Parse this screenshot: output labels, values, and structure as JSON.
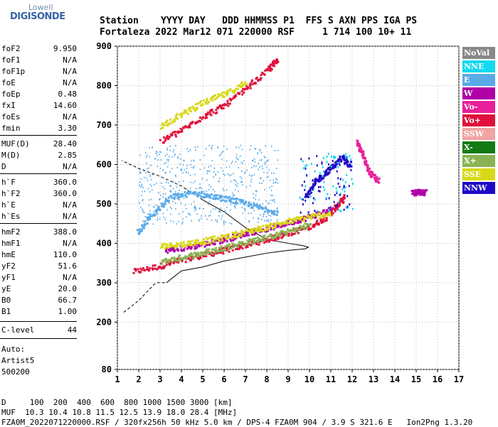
{
  "logo": {
    "top": "Lowell",
    "main": "DIGISONDE"
  },
  "header": {
    "line1": "Station    YYYY DAY   DDD HHMMSS P1  FFS S AXN PPS IGA PS",
    "line2": "Fortaleza 2022 Mar12 071 220000 RSF     1 714 100 10+ 11"
  },
  "params": [
    {
      "k": "foF2",
      "v": "9.950"
    },
    {
      "k": "foF1",
      "v": "N/A"
    },
    {
      "k": "foF1p",
      "v": "N/A"
    },
    {
      "k": "foE",
      "v": "N/A"
    },
    {
      "k": "foEp",
      "v": "0.48"
    },
    {
      "k": "fxI",
      "v": "14.60"
    },
    {
      "k": "foEs",
      "v": "N/A"
    },
    {
      "k": "fmin",
      "v": "3.30"
    },
    {
      "k": "MUF(D)",
      "v": "28.40"
    },
    {
      "k": "M(D)",
      "v": "2.85"
    },
    {
      "k": "D",
      "v": "N/A"
    },
    {
      "k": "h`F",
      "v": "360.0"
    },
    {
      "k": "h`F2",
      "v": "360.0"
    },
    {
      "k": "h`E",
      "v": "N/A"
    },
    {
      "k": "h`Es",
      "v": "N/A"
    },
    {
      "k": "hmF2",
      "v": "388.0"
    },
    {
      "k": "hmF1",
      "v": "N/A"
    },
    {
      "k": "hmE",
      "v": "110.0"
    },
    {
      "k": "yF2",
      "v": "51.6"
    },
    {
      "k": "yF1",
      "v": "N/A"
    },
    {
      "k": "yE",
      "v": "20.0"
    },
    {
      "k": "B0",
      "v": "66.7"
    },
    {
      "k": "B1",
      "v": "1.00"
    },
    {
      "k": "C-level",
      "v": "44"
    }
  ],
  "auto": {
    "line1": "Auto:",
    "line2": "Artist5",
    "line3": "500200"
  },
  "legend": [
    {
      "label": "NoVal",
      "color": "#888888"
    },
    {
      "label": "NNE",
      "color": "#14d8f0"
    },
    {
      "label": "E",
      "color": "#5aaae8"
    },
    {
      "label": "W",
      "color": "#b000a8"
    },
    {
      "label": "Vo-",
      "color": "#e8209a"
    },
    {
      "label": "Vo+",
      "color": "#e0103c"
    },
    {
      "label": "SSW",
      "color": "#f0a4a4"
    },
    {
      "label": "X-",
      "color": "#127a12"
    },
    {
      "label": "X+",
      "color": "#8ab452"
    },
    {
      "label": "SSE",
      "color": "#d8d818"
    },
    {
      "label": "NNW",
      "color": "#2008c8"
    }
  ],
  "footer": {
    "d_row": "D     100  200  400  600  800 1000 1500 3000 [km]",
    "muf_row": "MUF  10.3 10.4 10.8 11.5 12.5 13.9 18.0 28.4 [MHz]",
    "file_row": "FZA0M_2022071220000.RSF / 320fx256h 50 kHz 5.0 km / DPS-4 FZA0M 904 / 3.9 S 321.6 E   Ion2Png 1.3.20"
  },
  "chart_data": {
    "type": "scatter",
    "xlim": [
      1,
      17
    ],
    "ylim": [
      80,
      900
    ],
    "x_ticks": [
      "1",
      "2",
      "3",
      "4",
      "5",
      "6",
      "7",
      "8",
      "9",
      "10",
      "11",
      "12",
      "13",
      "14",
      "15",
      "16",
      "17"
    ],
    "y_ticks": [
      "80",
      "200",
      "300",
      "400",
      "500",
      "600",
      "700",
      "800",
      "900"
    ],
    "grid": true,
    "profile_solid": [
      [
        3.3,
        300
      ],
      [
        4.0,
        330
      ],
      [
        5.0,
        340
      ],
      [
        6.0,
        355
      ],
      [
        7.0,
        365
      ],
      [
        8.0,
        375
      ],
      [
        9.0,
        382
      ],
      [
        9.8,
        386
      ],
      [
        9.95,
        390
      ],
      [
        9.7,
        394
      ],
      [
        9.0,
        400
      ],
      [
        8.0,
        410
      ],
      [
        7.0,
        440
      ],
      [
        6.0,
        480
      ],
      [
        5.0,
        510
      ]
    ],
    "profile_dashed": [
      [
        1.3,
        225
      ],
      [
        2.0,
        255
      ],
      [
        2.8,
        300
      ],
      [
        3.3,
        300
      ]
    ],
    "profile_dashed_top": [
      [
        5.0,
        510
      ],
      [
        4.0,
        545
      ],
      [
        3.0,
        570
      ],
      [
        2.0,
        590
      ],
      [
        1.2,
        610
      ]
    ],
    "traces": [
      {
        "color": "#e0103c",
        "pts": [
          [
            1.7,
            330
          ],
          [
            3,
            345
          ],
          [
            4,
            360
          ],
          [
            5,
            372
          ],
          [
            6,
            385
          ],
          [
            7,
            398
          ],
          [
            8,
            412
          ],
          [
            9,
            428
          ],
          [
            10,
            445
          ],
          [
            10.8,
            470
          ],
          [
            11.3,
            500
          ],
          [
            11.6,
            520
          ]
        ]
      },
      {
        "color": "#8ab452",
        "pts": [
          [
            3,
            355
          ],
          [
            4,
            367
          ],
          [
            5,
            378
          ],
          [
            6,
            392
          ],
          [
            7,
            405
          ],
          [
            8,
            418
          ],
          [
            9,
            432
          ],
          [
            10,
            450
          ]
        ]
      },
      {
        "color": "#b000a8",
        "pts": [
          [
            3.2,
            385
          ],
          [
            4,
            390
          ],
          [
            5,
            400
          ],
          [
            6,
            412
          ],
          [
            7,
            428
          ],
          [
            8,
            440
          ],
          [
            9,
            455
          ],
          [
            10,
            470
          ],
          [
            11,
            490
          ]
        ]
      },
      {
        "color": "#d8d818",
        "pts": [
          [
            3,
            395
          ],
          [
            4,
            400
          ],
          [
            5,
            408
          ],
          [
            6,
            418
          ],
          [
            7,
            432
          ],
          [
            8,
            444
          ],
          [
            9,
            458
          ],
          [
            10,
            470
          ],
          [
            11,
            478
          ]
        ]
      },
      {
        "color": "#e0103c",
        "pts": [
          [
            3,
            660
          ],
          [
            4,
            690
          ],
          [
            5,
            725
          ],
          [
            6,
            752
          ],
          [
            7,
            795
          ],
          [
            8,
            840
          ],
          [
            8.5,
            870
          ]
        ]
      },
      {
        "color": "#d8d818",
        "pts": [
          [
            3,
            700
          ],
          [
            4,
            730
          ],
          [
            5,
            760
          ],
          [
            6,
            780
          ],
          [
            7,
            810
          ]
        ]
      },
      {
        "color": "#5aaae8",
        "pts": [
          [
            1.9,
            430
          ],
          [
            2.5,
            470
          ],
          [
            3.5,
            520
          ],
          [
            4.5,
            530
          ],
          [
            5.5,
            520
          ],
          [
            6.5,
            510
          ],
          [
            7.5,
            495
          ],
          [
            8.5,
            480
          ]
        ]
      },
      {
        "color": "#2008c8",
        "pts": [
          [
            9.8,
            520
          ],
          [
            10.3,
            560
          ],
          [
            10.9,
            590
          ],
          [
            11.5,
            620
          ],
          [
            11.9,
            600
          ]
        ]
      },
      {
        "color": "#e8209a",
        "pts": [
          [
            12.2,
            660
          ],
          [
            12.5,
            620
          ],
          [
            12.8,
            580
          ],
          [
            13.2,
            560
          ]
        ]
      },
      {
        "color": "#b000a8",
        "pts": [
          [
            14.8,
            530
          ],
          [
            15.1,
            532
          ],
          [
            15.4,
            531
          ]
        ]
      }
    ]
  }
}
